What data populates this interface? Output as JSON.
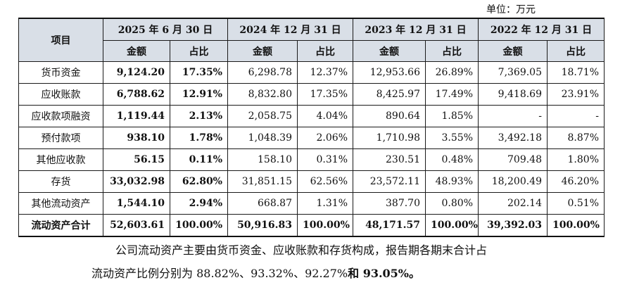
{
  "unit": "单位：万元",
  "table": {
    "item_header": "项目",
    "periods": [
      "2025 年 6 月 30 日",
      "2024 年 12 月 31 日",
      "2023 年 12 月 31 日",
      "2022 年 12 月 31 日"
    ],
    "amount_label": "金额",
    "ratio_label": "占比",
    "rows": [
      {
        "label": "货币资金",
        "values": [
          "9,124.20",
          "17.35%",
          "6,298.78",
          "12.37%",
          "12,953.66",
          "26.89%",
          "7,369.05",
          "18.71%"
        ]
      },
      {
        "label": "应收账款",
        "values": [
          "6,788.62",
          "12.91%",
          "8,832.80",
          "17.35%",
          "8,425.97",
          "17.49%",
          "9,418.69",
          "23.91%"
        ]
      },
      {
        "label": "应收款项融资",
        "values": [
          "1,119.44",
          "2.13%",
          "2,058.75",
          "4.04%",
          "890.64",
          "1.85%",
          "-",
          "-"
        ]
      },
      {
        "label": "预付款项",
        "values": [
          "938.10",
          "1.78%",
          "1,048.39",
          "2.06%",
          "1,710.98",
          "3.55%",
          "3,492.18",
          "8.87%"
        ]
      },
      {
        "label": "其他应收款",
        "values": [
          "56.15",
          "0.11%",
          "158.10",
          "0.31%",
          "230.51",
          "0.48%",
          "709.48",
          "1.80%"
        ]
      },
      {
        "label": "存货",
        "values": [
          "33,032.98",
          "62.80%",
          "31,851.15",
          "62.56%",
          "23,572.11",
          "48.93%",
          "18,200.49",
          "46.20%"
        ]
      },
      {
        "label": "其他流动资产",
        "values": [
          "1,544.10",
          "2.94%",
          "668.87",
          "1.31%",
          "387.70",
          "0.80%",
          "202.14",
          "0.51%"
        ]
      },
      {
        "label": "流动资产合计",
        "values": [
          "52,603.61",
          "100.00%",
          "50,916.83",
          "100.00%",
          "48,171.57",
          "100.00%",
          "39,392.03",
          "100.00%"
        ]
      }
    ]
  },
  "paragraph": {
    "line1": "公司流动资产主要由货币资金、应收账款和存货构成，报告期各期末合计占",
    "line2_pre": "流动资产比例分别为 88.82%、93.32%、92.27%",
    "line2_bold": "和 93.05%。"
  }
}
